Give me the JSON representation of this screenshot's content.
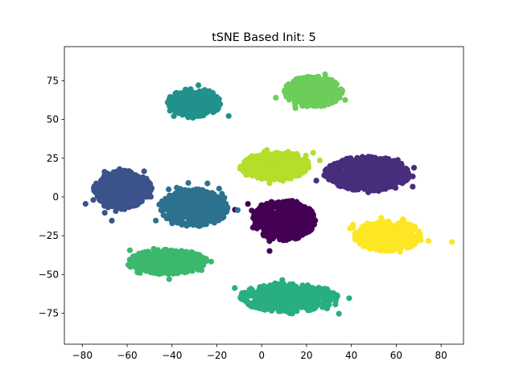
{
  "chart_data": {
    "type": "scatter",
    "title": "tSNE Based Init: 5",
    "xlabel": "",
    "ylabel": "",
    "xlim": [
      -88,
      90
    ],
    "ylim": [
      -95,
      97
    ],
    "xticks": [
      -80,
      -60,
      -40,
      -20,
      0,
      20,
      40,
      60,
      80
    ],
    "yticks": [
      -75,
      -50,
      -25,
      0,
      25,
      50,
      75
    ],
    "grid": false,
    "legend": "none",
    "marker": "circle",
    "clusters": [
      {
        "color": "#440154",
        "center": [
          10,
          -15
        ],
        "spread": [
          14,
          13
        ],
        "points": 520
      },
      {
        "color": "#472d7b",
        "center": [
          47,
          15
        ],
        "spread": [
          19,
          11
        ],
        "points": 650
      },
      {
        "color": "#3b528b",
        "center": [
          -62,
          5
        ],
        "spread": [
          13,
          12
        ],
        "points": 500
      },
      {
        "color": "#2c728e",
        "center": [
          -30,
          -7
        ],
        "spread": [
          15,
          12
        ],
        "points": 520
      },
      {
        "color": "#21918c",
        "center": [
          -30,
          61
        ],
        "spread": [
          12,
          9
        ],
        "points": 380
      },
      {
        "color": "#28ae80",
        "center": [
          12,
          -65
        ],
        "spread": [
          22,
          9
        ],
        "points": 480
      },
      {
        "color": "#3bb86c",
        "center": [
          -42,
          -42
        ],
        "spread": [
          18,
          8
        ],
        "points": 480
      },
      {
        "color": "#6ccd5a",
        "center": [
          23,
          68
        ],
        "spread": [
          13,
          10
        ],
        "points": 420
      },
      {
        "color": "#b5de2b",
        "center": [
          6,
          20
        ],
        "spread": [
          16,
          9
        ],
        "points": 430
      },
      {
        "color": "#fde725",
        "center": [
          56,
          -25
        ],
        "spread": [
          15,
          10
        ],
        "points": 450
      }
    ]
  }
}
